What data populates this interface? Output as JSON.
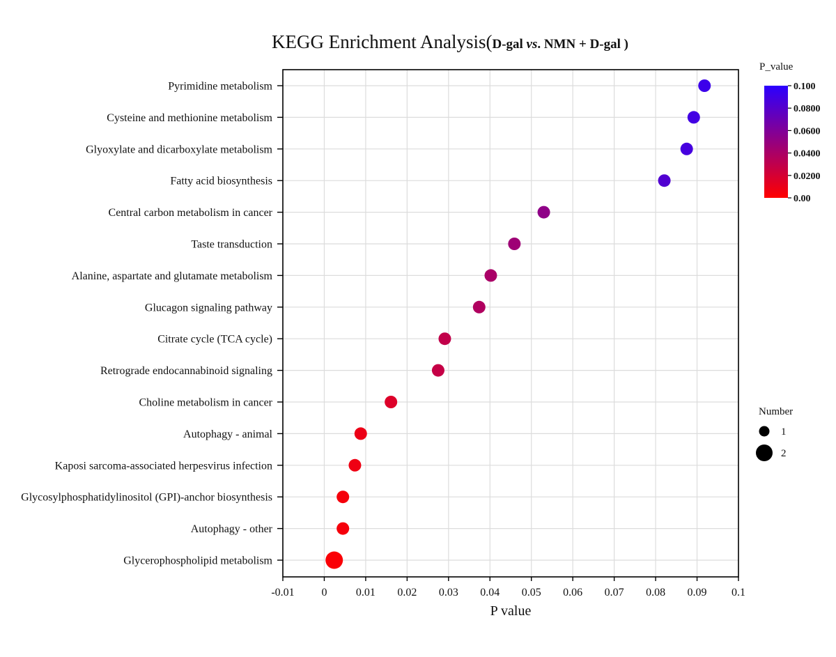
{
  "chart_data": {
    "type": "scatter",
    "title_prefix": "KEGG Enrichment Analysis(",
    "title_group_a": "D-gal ",
    "title_vs": "vs",
    "title_group_b": ". NMN + D-gal )",
    "xlabel": "P value",
    "xlim": [
      -0.01,
      0.1
    ],
    "xticks": [
      -0.01,
      0,
      0.01,
      0.02,
      0.03,
      0.04,
      0.05,
      0.06,
      0.07,
      0.08,
      0.09,
      0.1
    ],
    "xtick_labels": [
      "-0.01",
      "0",
      "0.01",
      "0.02",
      "0.03",
      "0.04",
      "0.05",
      "0.06",
      "0.07",
      "0.08",
      "0.09",
      "0.1"
    ],
    "grid": true,
    "categories": [
      "Pyrimidine metabolism",
      "Cysteine and methionine metabolism",
      "Glyoxylate and dicarboxylate metabolism",
      "Fatty acid biosynthesis",
      "Central carbon metabolism in cancer",
      "Taste transduction",
      "Alanine, aspartate and glutamate metabolism",
      "Glucagon signaling pathway",
      "Citrate cycle (TCA cycle)",
      "Retrograde endocannabinoid signaling",
      "Choline metabolism in cancer",
      "Autophagy - animal",
      "Kaposi sarcoma-associated herpesvirus infection",
      "Glycosylphosphatidylinositol (GPI)-anchor biosynthesis",
      "Autophagy - other",
      "Glycerophospholipid metabolism"
    ],
    "values": [
      0.0918,
      0.0892,
      0.0875,
      0.0821,
      0.053,
      0.0459,
      0.0402,
      0.0374,
      0.0291,
      0.0275,
      0.0161,
      0.0088,
      0.0074,
      0.0045,
      0.0045,
      0.0024
    ],
    "number": [
      1,
      1,
      1,
      1,
      1,
      1,
      1,
      1,
      1,
      1,
      1,
      1,
      1,
      1,
      1,
      2
    ],
    "color_scale": {
      "title": "P_value",
      "min": 0,
      "max": 0.1,
      "color_low": "#ff0000",
      "color_high": "#2b00ff",
      "tick_labels": [
        "0.100",
        "0.0800",
        "0.0600",
        "0.0400",
        "0.0200",
        "0.00"
      ]
    },
    "size_legend": {
      "title": "Number",
      "labels": [
        "1",
        "2"
      ]
    }
  }
}
